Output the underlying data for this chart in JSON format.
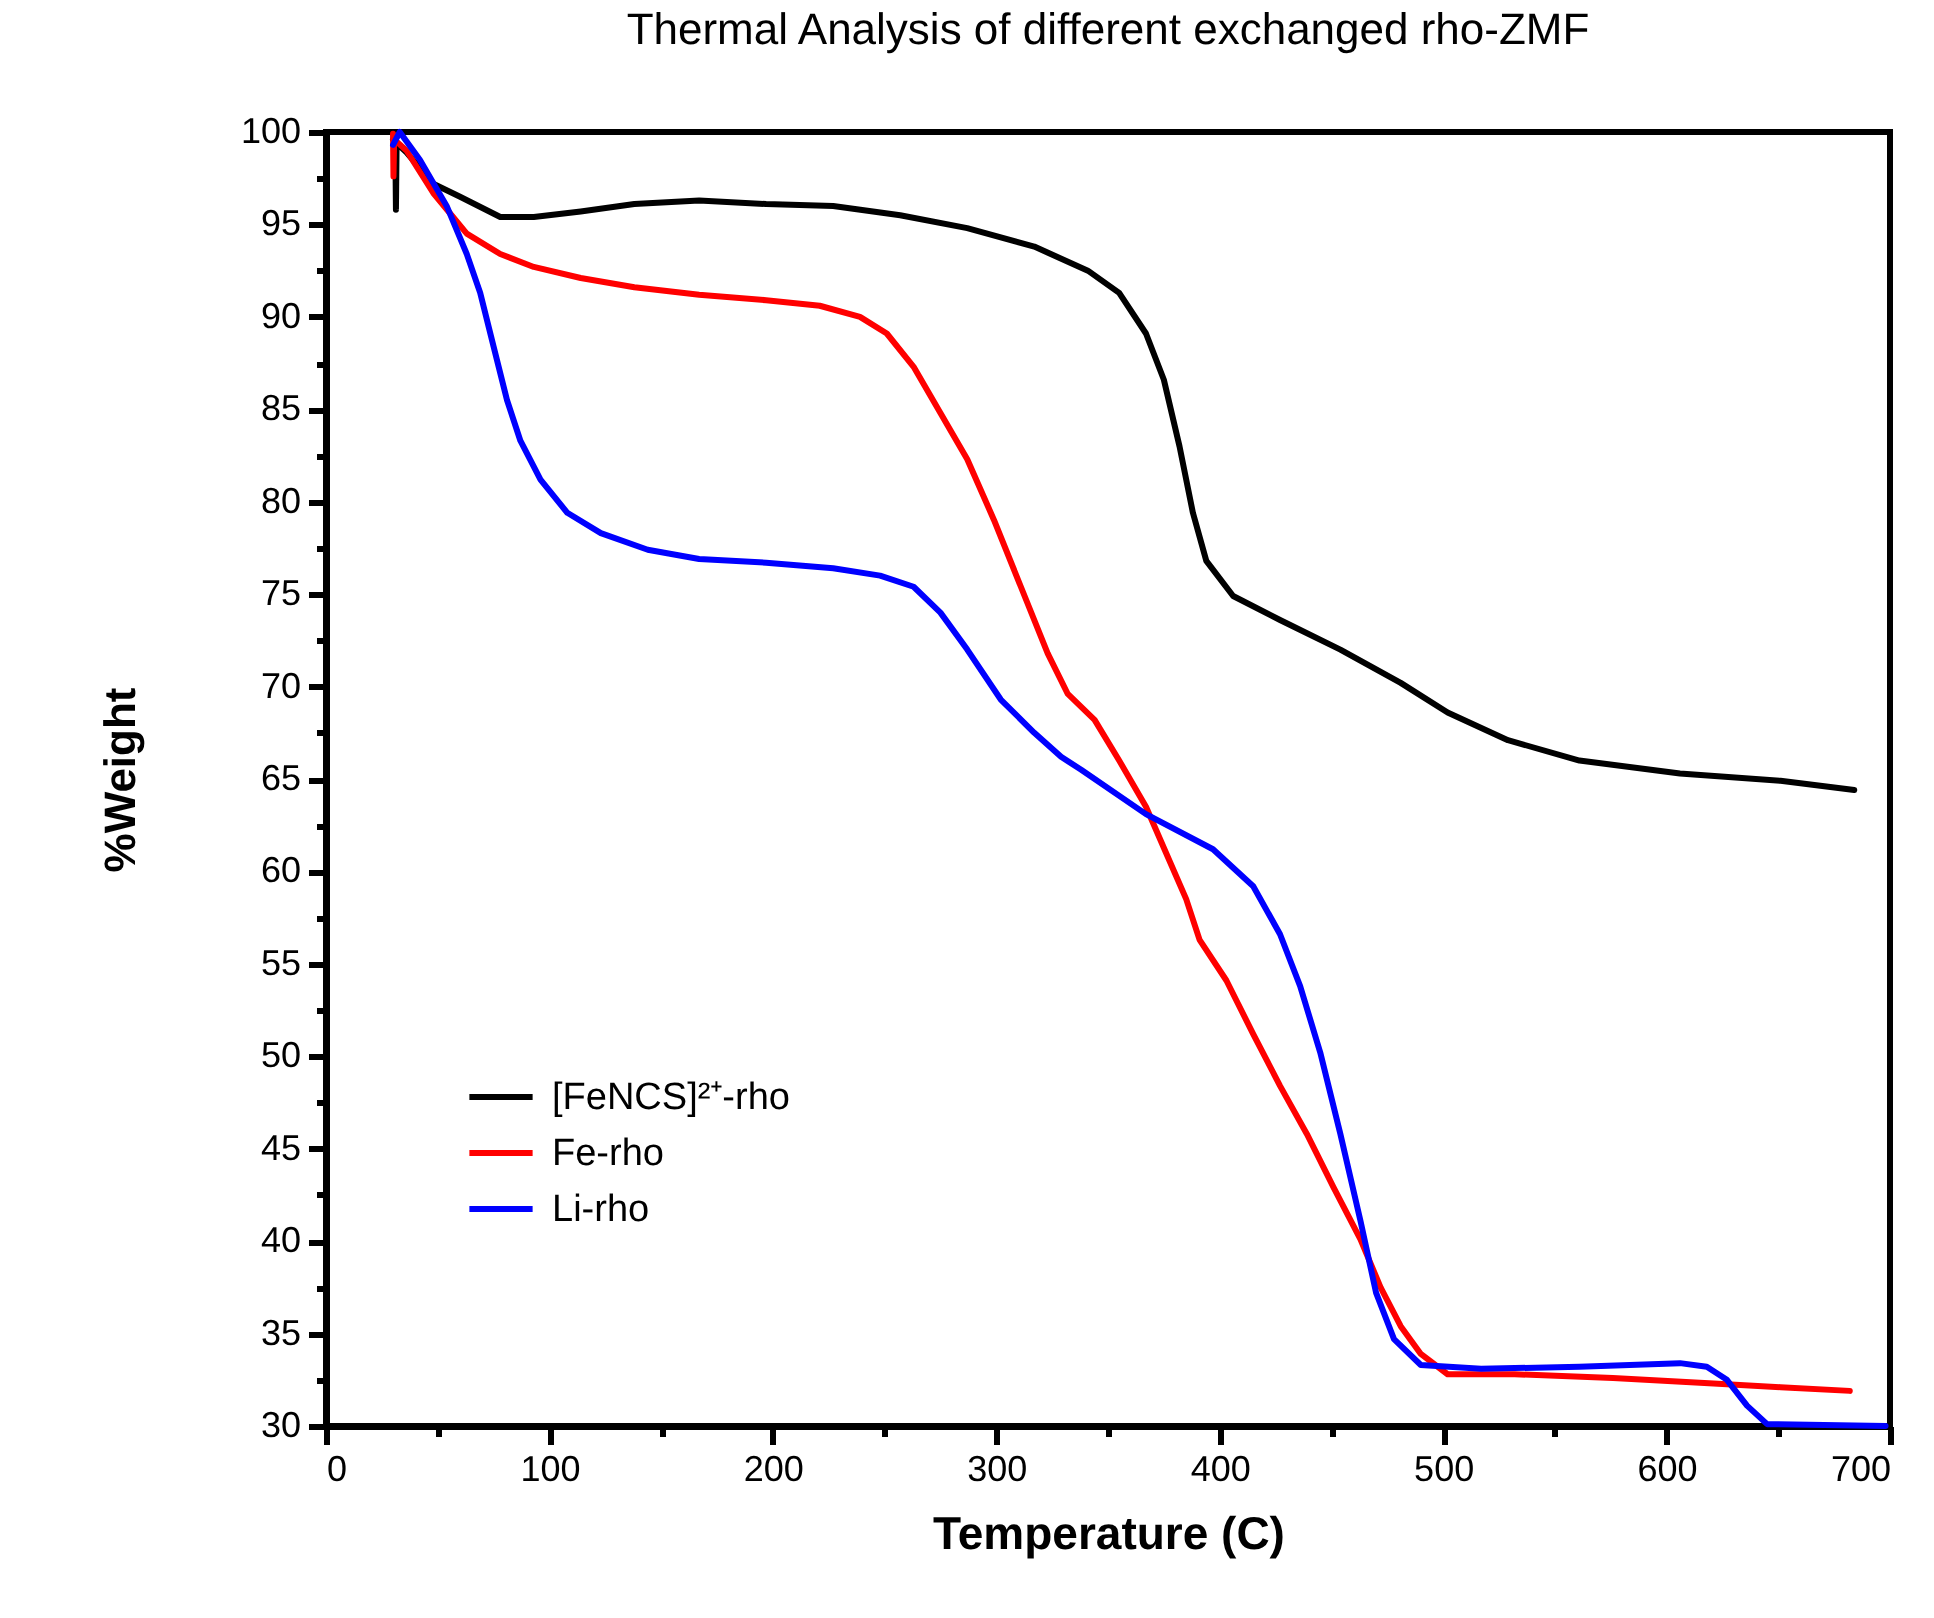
{
  "chart_data": {
    "type": "line",
    "title": "Thermal Analysis of different exchanged rho-ZMF",
    "xlabel": "Temperature (C)",
    "ylabel": "%Weight",
    "xlim": [
      0,
      700
    ],
    "ylim": [
      30,
      100
    ],
    "xticks": [
      0,
      {
        "value": 50,
        "label": null
      },
      100,
      {
        "value": 150,
        "label": null
      },
      200,
      {
        "value": 250,
        "label": null
      },
      300,
      {
        "value": 350,
        "label": null
      },
      400,
      {
        "value": 450,
        "label": null
      },
      500,
      {
        "value": 550,
        "label": null
      },
      600,
      {
        "value": 650,
        "label": null
      },
      700
    ],
    "yticks": [
      30,
      {
        "value": 32.5,
        "label": null
      },
      35,
      {
        "value": 37.5,
        "label": null
      },
      40,
      {
        "value": 42.5,
        "label": null
      },
      45,
      {
        "value": 47.5,
        "label": null
      },
      50,
      {
        "value": 52.5,
        "label": null
      },
      55,
      {
        "value": 57.5,
        "label": null
      },
      60,
      {
        "value": 62.5,
        "label": null
      },
      65,
      {
        "value": 67.5,
        "label": null
      },
      70,
      {
        "value": 72.5,
        "label": null
      },
      75,
      {
        "value": 77.5,
        "label": null
      },
      80,
      {
        "value": 82.5,
        "label": null
      },
      85,
      {
        "value": 87.5,
        "label": null
      },
      90,
      {
        "value": 92.5,
        "label": null
      },
      95,
      {
        "value": 97.5,
        "label": null
      },
      100
    ],
    "grid": false,
    "legend": "bottom left",
    "line_style": "solid",
    "series": [
      {
        "name": "[FeNCS]²⁺-rho",
        "color": "#000000",
        "x": [
          30,
          31,
          31.3,
          31.6,
          36,
          48,
          60,
          78,
          93,
          114,
          138,
          167,
          197,
          227,
          257,
          287,
          317,
          341,
          355,
          367,
          375,
          382,
          388,
          394,
          406,
          427,
          454,
          481,
          502,
          529,
          561,
          606,
          651,
          684
        ],
        "values": [
          99.6,
          99.5,
          95.8,
          99.4,
          98.9,
          97.2,
          96.5,
          95.4,
          95.4,
          95.7,
          96.1,
          96.3,
          96.1,
          96.0,
          95.5,
          94.8,
          93.8,
          92.5,
          91.3,
          89.1,
          86.6,
          83.0,
          79.4,
          76.8,
          74.9,
          73.6,
          72.0,
          70.2,
          68.6,
          67.1,
          66.0,
          65.3,
          64.9,
          64.4
        ]
      },
      {
        "name": "Fe-rho",
        "color": "#ff0000",
        "x": [
          30,
          30.2,
          30.5,
          36,
          48,
          63,
          78,
          93,
          114,
          138,
          167,
          197,
          221,
          239,
          251,
          263,
          275,
          287,
          299,
          311,
          323,
          332,
          344,
          355,
          367,
          376,
          385,
          391,
          403,
          415,
          427,
          439,
          451,
          463,
          472,
          481,
          490,
          502,
          532,
          576,
          621,
          651,
          682
        ],
        "values": [
          99.9,
          97.6,
          99.6,
          99.0,
          96.7,
          94.5,
          93.4,
          92.7,
          92.1,
          91.6,
          91.2,
          90.9,
          90.6,
          90.0,
          89.1,
          87.3,
          84.8,
          82.3,
          79.0,
          75.4,
          71.8,
          69.6,
          68.2,
          66.0,
          63.5,
          61.0,
          58.5,
          56.3,
          54.1,
          51.2,
          48.4,
          45.8,
          42.9,
          40.1,
          37.5,
          35.4,
          33.9,
          32.8,
          32.8,
          32.6,
          32.3,
          32.1,
          31.9
        ]
      },
      {
        "name": "Li-rho",
        "color": "#0000ff",
        "x": [
          30,
          33,
          42,
          54,
          63,
          69,
          75,
          81,
          87,
          96,
          108,
          123,
          144,
          167,
          197,
          227,
          248,
          263,
          275,
          287,
          302,
          317,
          329,
          338,
          367,
          397,
          415,
          427,
          436,
          445,
          454,
          463,
          470,
          478,
          490,
          517,
          561,
          606,
          618,
          627,
          636,
          645,
          698
        ],
        "values": [
          99.3,
          100,
          98.5,
          96.0,
          93.4,
          91.3,
          88.4,
          85.5,
          83.3,
          81.2,
          79.4,
          78.3,
          77.4,
          76.9,
          76.7,
          76.4,
          76.0,
          75.4,
          74.0,
          72.0,
          69.3,
          67.5,
          66.2,
          65.5,
          63.1,
          61.2,
          59.2,
          56.6,
          53.8,
          50.2,
          45.8,
          41.1,
          37.2,
          34.7,
          33.3,
          33.1,
          33.2,
          33.4,
          33.2,
          32.5,
          31.1,
          30.1,
          30.0
        ]
      }
    ]
  }
}
